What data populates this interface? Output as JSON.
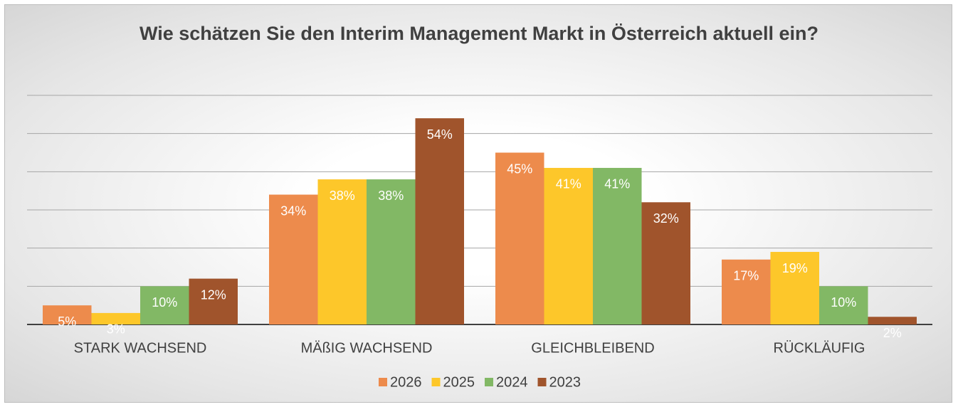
{
  "chart_data": {
    "type": "bar",
    "title": "Wie schätzen Sie den Interim Management Markt in Österreich aktuell ein?",
    "categories": [
      "STARK WACHSEND",
      "MÄßIG WACHSEND",
      "GLEICHBLEIBEND",
      "RÜCKLÄUFIG"
    ],
    "series": [
      {
        "name": "2026",
        "color": "#ED8B4C",
        "values": [
          5,
          34,
          45,
          17
        ],
        "value_labels": [
          "5%",
          "34%",
          "45%",
          "17%"
        ]
      },
      {
        "name": "2025",
        "color": "#FDC72A",
        "values": [
          3,
          38,
          41,
          19
        ],
        "value_labels": [
          "3%",
          "38%",
          "41%",
          "19%"
        ]
      },
      {
        "name": "2024",
        "color": "#82B865",
        "values": [
          10,
          38,
          41,
          10
        ],
        "value_labels": [
          "10%",
          "38%",
          "41%",
          "10%"
        ]
      },
      {
        "name": "2023",
        "color": "#A0542C",
        "values": [
          12,
          54,
          32,
          2
        ],
        "value_labels": [
          "12%",
          "54%",
          "32%",
          "2%"
        ]
      }
    ],
    "ylim": [
      0,
      60
    ],
    "yticks": [
      0,
      10,
      20,
      30,
      40,
      50,
      60
    ],
    "grid": true,
    "legend": "bottom"
  }
}
